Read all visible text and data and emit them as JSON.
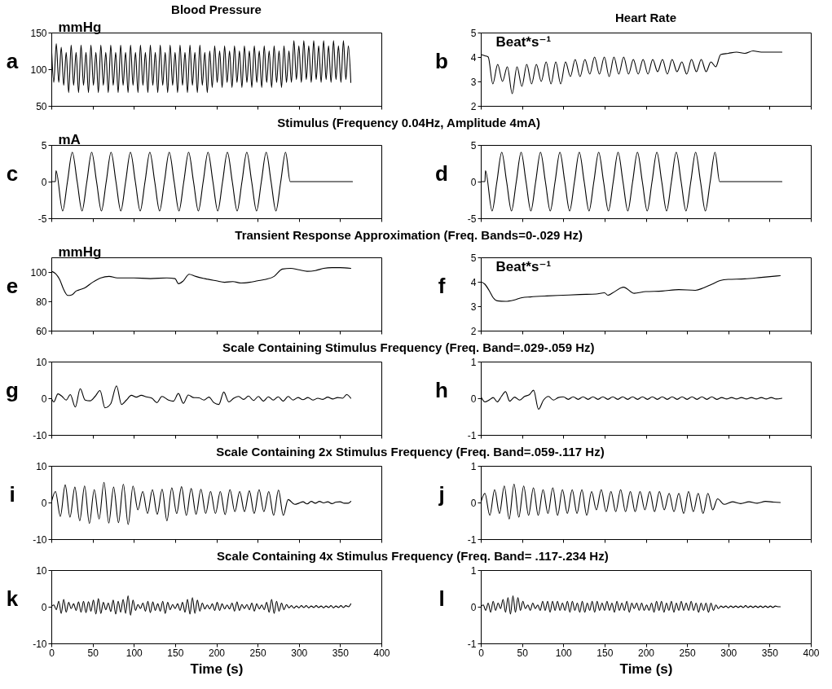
{
  "chart_data": [
    {
      "type": "line",
      "title": "Blood Pressure",
      "ylabel": "mmHg",
      "annotations": [
        "a"
      ],
      "xlim": [
        0,
        400
      ],
      "xticks": [
        0,
        50,
        100,
        150,
        200,
        250,
        300,
        350,
        400
      ],
      "ylim": [
        50,
        150
      ],
      "yticks": [
        50,
        100,
        150
      ],
      "tick_labels": "y",
      "x": [
        0,
        3,
        6,
        9,
        12,
        15,
        18,
        21,
        24,
        27,
        30,
        33,
        36,
        39,
        42,
        45,
        48,
        51,
        54,
        57,
        60,
        63,
        66,
        69,
        72,
        75,
        78,
        81,
        84,
        87,
        90,
        93,
        96,
        99,
        102,
        105,
        108,
        111,
        114,
        117,
        120,
        123,
        126,
        129,
        132,
        135,
        138,
        141,
        144,
        147,
        150,
        153,
        156,
        159,
        162,
        165,
        168,
        171,
        174,
        177,
        180,
        183,
        186,
        189,
        192,
        195,
        198,
        201,
        204,
        207,
        210,
        213,
        216,
        219,
        222,
        225,
        228,
        231,
        234,
        237,
        240,
        243,
        246,
        249,
        252,
        255,
        258,
        261,
        264,
        267,
        270,
        273,
        276,
        279,
        282,
        285,
        288,
        291,
        294,
        297,
        300,
        303,
        306,
        309,
        312,
        315,
        318,
        321,
        324,
        327,
        330,
        333,
        336,
        339,
        342,
        345,
        348,
        351,
        354,
        357,
        360,
        363
      ],
      "series": [
        {
          "color": "#000000",
          "values": [
            135,
            82,
            135,
            82,
            130,
            78,
            123,
            68,
            133,
            78,
            123,
            68,
            133,
            78,
            123,
            68,
            133,
            78,
            123,
            68,
            133,
            78,
            123,
            68,
            133,
            78,
            123,
            68,
            133,
            78,
            123,
            68,
            133,
            78,
            123,
            68,
            133,
            78,
            123,
            68,
            133,
            78,
            123,
            68,
            133,
            78,
            123,
            68,
            133,
            78,
            123,
            68,
            133,
            78,
            123,
            68,
            133,
            78,
            123,
            68,
            133,
            78,
            123,
            68,
            125,
            75,
            132,
            82,
            125,
            75,
            132,
            82,
            125,
            75,
            132,
            82,
            125,
            75,
            132,
            82,
            125,
            75,
            132,
            82,
            125,
            75,
            132,
            82,
            125,
            75,
            132,
            82,
            125,
            75,
            132,
            82,
            125,
            82,
            139,
            86,
            132,
            82,
            139,
            86,
            132,
            82,
            139,
            86,
            132,
            82,
            139,
            86,
            132,
            82,
            139,
            86,
            132,
            82,
            139,
            86,
            132,
            82
          ]
        }
      ]
    },
    {
      "type": "line",
      "title": "Heart Rate",
      "ylabel": "Beat*s⁻¹",
      "annotations": [
        "b"
      ],
      "xlim": [
        0,
        400
      ],
      "xticks": [
        0,
        50,
        100,
        150,
        200,
        250,
        300,
        350,
        400
      ],
      "ylim": [
        2,
        5
      ],
      "yticks": [
        2,
        3,
        4,
        5
      ],
      "tick_labels": "y",
      "x": [
        0,
        5,
        9,
        14.6,
        20.5,
        26.3,
        32.2,
        38.1,
        43.9,
        49.8,
        55.7,
        61.6,
        67.4,
        73.3,
        79.2,
        85.1,
        90.9,
        96.8,
        102.7,
        108.6,
        114.4,
        120.3,
        126.2,
        132.1,
        137.9,
        143.8,
        149.7,
        155.6,
        161.4,
        167.3,
        173.2,
        179.1,
        184.9,
        190.8,
        196.7,
        202.6,
        208.4,
        214.3,
        220.2,
        226.1,
        231.9,
        237.8,
        243.7,
        249.6,
        255.4,
        261.3,
        267.2,
        273.1,
        278.9,
        284.8,
        290.7,
        300,
        310,
        320,
        330,
        340,
        350,
        365
      ],
      "series": [
        {
          "color": "#000000",
          "values": [
            4.1,
            4.05,
            4.0,
            2.9,
            3.7,
            3.0,
            3.6,
            2.5,
            3.6,
            2.8,
            3.7,
            2.9,
            3.7,
            3.0,
            3.8,
            2.9,
            3.8,
            2.9,
            3.8,
            3.2,
            3.9,
            3.2,
            3.9,
            3.3,
            4.0,
            3.3,
            4.0,
            3.2,
            4.0,
            3.3,
            4.0,
            3.3,
            3.9,
            3.3,
            3.9,
            3.3,
            3.9,
            3.4,
            3.9,
            3.3,
            3.9,
            3.4,
            3.8,
            3.3,
            3.9,
            3.4,
            3.9,
            3.4,
            3.8,
            3.6,
            4.1,
            4.15,
            4.2,
            4.15,
            4.25,
            4.2,
            4.2,
            4.2
          ]
        }
      ]
    },
    {
      "type": "line",
      "title": "Stimulus (Frequency 0.04Hz, Amplitude 4mA)",
      "ylabel": "mA",
      "annotations": [
        "c"
      ],
      "xlim": [
        0,
        400
      ],
      "xticks": [
        0,
        50,
        100,
        150,
        200,
        250,
        300,
        350,
        400
      ],
      "ylim": [
        -5,
        5
      ],
      "yticks": [
        -5,
        0,
        5
      ],
      "tick_labels": "y",
      "x": [
        0,
        5,
        5.7,
        13.7,
        19.55,
        25.4,
        31.3,
        37.2,
        43.05,
        48.9,
        54.8,
        60.7,
        66.55,
        72.4,
        78.3,
        84.2,
        90.05,
        95.9,
        101.8,
        107.7,
        113.55,
        119.4,
        125.3,
        131.2,
        137.05,
        142.9,
        148.8,
        154.7,
        160.55,
        166.4,
        172.3,
        178.2,
        184.05,
        189.9,
        195.8,
        201.7,
        207.55,
        213.4,
        219.3,
        225.2,
        231.05,
        236.9,
        242.8,
        248.7,
        254.55,
        260.4,
        266.3,
        272.2,
        278.05,
        283.9,
        289.5,
        365
      ],
      "series": [
        {
          "color": "#000000",
          "values": [
            0,
            0,
            1.5,
            -4,
            0,
            4,
            0,
            -4,
            0,
            4,
            0,
            -4,
            0,
            4,
            0,
            -4,
            0,
            4,
            0,
            -4,
            0,
            4,
            0,
            -4,
            0,
            4,
            0,
            -4,
            0,
            4,
            0,
            -4,
            0,
            4,
            0,
            -4,
            0,
            4,
            0,
            -4,
            0,
            4,
            0,
            -4,
            0,
            4,
            0,
            -4,
            0,
            4,
            0,
            0
          ]
        }
      ]
    },
    {
      "type": "line",
      "annotations": [
        "d"
      ],
      "xlim": [
        0,
        400
      ],
      "xticks": [
        0,
        50,
        100,
        150,
        200,
        250,
        300,
        350,
        400
      ],
      "ylim": [
        -5,
        5
      ],
      "yticks": [
        -5,
        0,
        5
      ],
      "tick_labels": "y",
      "x": [
        0,
        5,
        5.7,
        13.7,
        19.55,
        25.4,
        31.3,
        37.2,
        43.05,
        48.9,
        54.8,
        60.7,
        66.55,
        72.4,
        78.3,
        84.2,
        90.05,
        95.9,
        101.8,
        107.7,
        113.55,
        119.4,
        125.3,
        131.2,
        137.05,
        142.9,
        148.8,
        154.7,
        160.55,
        166.4,
        172.3,
        178.2,
        184.05,
        189.9,
        195.8,
        201.7,
        207.55,
        213.4,
        219.3,
        225.2,
        231.05,
        236.9,
        242.8,
        248.7,
        254.55,
        260.4,
        266.3,
        272.2,
        278.05,
        283.9,
        289.5,
        365
      ],
      "series": [
        {
          "color": "#000000",
          "values": [
            0,
            0,
            1.5,
            -4,
            0,
            4,
            0,
            -4,
            0,
            4,
            0,
            -4,
            0,
            4,
            0,
            -4,
            0,
            4,
            0,
            -4,
            0,
            4,
            0,
            -4,
            0,
            4,
            0,
            -4,
            0,
            4,
            0,
            -4,
            0,
            4,
            0,
            -4,
            0,
            4,
            0,
            -4,
            0,
            4,
            0,
            -4,
            0,
            4,
            0,
            -4,
            0,
            4,
            0,
            0
          ]
        }
      ]
    },
    {
      "type": "line",
      "title": "Transient Response Approximation (Freq. Bands=0-.029 Hz)",
      "ylabel": "mmHg",
      "annotations": [
        "e"
      ],
      "xlim": [
        0,
        400
      ],
      "xticks": [
        0,
        50,
        100,
        150,
        200,
        250,
        300,
        350,
        400
      ],
      "ylim": [
        60,
        110
      ],
      "yticks": [
        60,
        80,
        100
      ],
      "tick_labels": "y",
      "x": [
        0,
        5,
        10,
        15,
        20,
        25,
        30,
        35,
        40,
        50,
        60,
        70,
        80,
        100,
        120,
        140,
        150,
        154,
        160,
        167,
        175,
        186,
        200,
        210,
        220,
        230,
        240,
        250,
        260,
        270,
        280,
        290,
        300,
        310,
        320,
        330,
        340,
        350,
        363
      ],
      "series": [
        {
          "color": "#000000",
          "values": [
            100.5,
            99,
            95,
            88,
            84,
            84.5,
            87,
            88,
            89,
            93,
            96,
            97,
            96,
            96,
            95.5,
            96,
            95.5,
            92,
            94,
            98.5,
            97,
            95.5,
            94,
            93,
            93.5,
            92.5,
            93,
            94,
            95,
            97,
            102,
            102.5,
            101.5,
            100.5,
            101,
            102.5,
            103,
            103,
            102.5
          ]
        }
      ]
    },
    {
      "type": "line",
      "ylabel": "Beat*s⁻¹",
      "annotations": [
        "f"
      ],
      "xlim": [
        0,
        400
      ],
      "xticks": [
        0,
        50,
        100,
        150,
        200,
        250,
        300,
        350,
        400
      ],
      "ylim": [
        2,
        5
      ],
      "yticks": [
        2,
        3,
        4,
        5
      ],
      "tick_labels": "y",
      "x": [
        0,
        5,
        10,
        15,
        20,
        30,
        40,
        50,
        60,
        80,
        100,
        120,
        140,
        150,
        154,
        160,
        173,
        186,
        200,
        220,
        240,
        260,
        270,
        280,
        290,
        300,
        320,
        340,
        363
      ],
      "series": [
        {
          "color": "#000000",
          "values": [
            4.0,
            3.9,
            3.65,
            3.35,
            3.22,
            3.2,
            3.25,
            3.35,
            3.38,
            3.42,
            3.45,
            3.48,
            3.5,
            3.55,
            3.45,
            3.55,
            3.78,
            3.53,
            3.6,
            3.62,
            3.68,
            3.65,
            3.75,
            3.9,
            4.05,
            4.1,
            4.12,
            4.18,
            4.25
          ]
        }
      ]
    },
    {
      "type": "line",
      "title": "Scale Containing Stimulus Frequency (Freq. Band=.029-.059 Hz)",
      "annotations": [
        "g"
      ],
      "xlim": [
        0,
        400
      ],
      "xticks": [
        0,
        50,
        100,
        150,
        200,
        250,
        300,
        350,
        400
      ],
      "ylim": [
        -10,
        10
      ],
      "yticks": [
        -10,
        0,
        10
      ],
      "tick_labels": "y",
      "x": [
        0,
        3,
        8,
        13,
        18,
        23,
        29,
        35,
        41,
        47,
        53,
        59,
        65,
        72,
        79,
        85,
        91,
        97,
        103,
        109,
        115,
        122,
        128,
        134,
        142,
        148,
        154,
        160,
        166,
        172,
        179,
        185,
        191,
        197,
        203,
        209,
        215,
        221,
        227,
        233,
        239,
        245,
        251,
        257,
        263,
        269,
        275,
        281,
        287,
        293,
        299,
        305,
        311,
        317,
        323,
        329,
        335,
        341,
        347,
        353,
        358,
        363
      ],
      "series": [
        {
          "color": "#000000",
          "values": [
            0,
            -1,
            1.2,
            0.5,
            -0.5,
            1,
            -2.4,
            2.6,
            -0.5,
            -0.7,
            0.5,
            2.1,
            -2.6,
            -1.5,
            3.4,
            -1.7,
            -0.5,
            0.8,
            0.3,
            0.8,
            0.4,
            0,
            -1.2,
            0.5,
            -0.5,
            -0.8,
            1.3,
            -1.4,
            0.9,
            0.2,
            0.1,
            -0.5,
            0.3,
            -1.2,
            -1.7,
            1.7,
            -1,
            0,
            0.5,
            -0.3,
            0.6,
            -0.6,
            0.5,
            -0.8,
            0.4,
            -0.5,
            0.4,
            -0.8,
            0.5,
            -0.5,
            0.2,
            -0.4,
            0.2,
            -0.5,
            0,
            -0.3,
            0.3,
            -0.2,
            0.2,
            0,
            1,
            0
          ]
        }
      ]
    },
    {
      "type": "line",
      "annotations": [
        "h"
      ],
      "xlim": [
        0,
        400
      ],
      "xticks": [
        0,
        50,
        100,
        150,
        200,
        250,
        300,
        350,
        400
      ],
      "ylim": [
        -1,
        1
      ],
      "yticks": [
        -1,
        0,
        1
      ],
      "tick_labels": "y",
      "x": [
        0,
        5,
        10,
        15,
        20,
        25,
        30,
        35,
        41,
        47,
        53,
        59,
        64,
        70,
        76,
        82,
        88,
        94,
        100,
        106,
        112,
        118,
        124,
        130,
        136,
        142,
        148,
        154,
        160,
        166,
        172,
        178,
        184,
        190,
        196,
        202,
        208,
        214,
        220,
        226,
        232,
        238,
        244,
        250,
        256,
        262,
        268,
        274,
        280,
        286,
        292,
        298,
        304,
        310,
        316,
        322,
        328,
        334,
        340,
        346,
        352,
        358,
        365
      ],
      "series": [
        {
          "color": "#000000",
          "values": [
            0.05,
            -0.1,
            -0.05,
            0.02,
            -0.1,
            0.05,
            0.18,
            -0.08,
            0.03,
            -0.05,
            0.05,
            0.1,
            0.22,
            -0.3,
            -0.05,
            0.05,
            -0.05,
            0.02,
            0.04,
            -0.03,
            0.04,
            -0.03,
            0.04,
            -0.03,
            0.04,
            -0.03,
            0.04,
            -0.03,
            0.04,
            -0.03,
            0.04,
            -0.03,
            0.04,
            -0.03,
            0.04,
            -0.03,
            0.04,
            -0.03,
            0.04,
            -0.03,
            0.04,
            -0.03,
            0.04,
            -0.03,
            0.04,
            -0.03,
            0.04,
            -0.03,
            0.04,
            -0.03,
            0.02,
            -0.02,
            0.02,
            -0.02,
            0.02,
            -0.02,
            0.02,
            -0.02,
            0.02,
            -0.02,
            0.02,
            -0.02,
            0
          ]
        }
      ]
    },
    {
      "type": "line",
      "title": "Scale Containing 2x Stimulus Frequency (Freq. Band=.059-.117 Hz)",
      "annotations": [
        "i"
      ],
      "xlim": [
        0,
        400
      ],
      "xticks": [
        0,
        50,
        100,
        150,
        200,
        250,
        300,
        350,
        400
      ],
      "ylim": [
        -10,
        10
      ],
      "yticks": [
        -10,
        0,
        10
      ],
      "tick_labels": "y",
      "x": [
        0,
        5,
        10.9,
        16.8,
        22.6,
        28.5,
        34.4,
        40.3,
        46.1,
        52,
        57.9,
        63.8,
        69.6,
        75.5,
        81.4,
        87.3,
        93.1,
        99,
        104.9,
        110.8,
        116.6,
        122.5,
        128.4,
        134.3,
        140.1,
        146,
        151.9,
        157.8,
        163.6,
        169.5,
        175.4,
        181.3,
        187.1,
        193,
        198.9,
        204.8,
        210.6,
        216.5,
        222.4,
        228.3,
        234.1,
        240,
        245.9,
        251.8,
        257.6,
        263.5,
        269.4,
        275.3,
        281.1,
        287,
        295,
        300,
        305,
        310,
        315,
        320,
        325,
        330,
        335,
        340,
        345,
        350,
        355,
        360,
        363
      ],
      "series": [
        {
          "color": "#000000",
          "values": [
            0,
            3,
            -3.8,
            4.8,
            -4,
            4.2,
            -5,
            4.5,
            -5.7,
            3.5,
            -4.5,
            5.5,
            -5.6,
            4.2,
            -5.5,
            5,
            -6,
            4.5,
            -2,
            3,
            -3,
            3.5,
            -3.2,
            3.6,
            -5,
            4,
            -3,
            4.3,
            -3.5,
            3.8,
            -3.2,
            3.6,
            -3,
            3,
            -3,
            3,
            -3.3,
            3.5,
            -2.5,
            3,
            -2.5,
            3.2,
            -3,
            3.5,
            -2.5,
            3,
            -3.5,
            3.4,
            -3.5,
            0.8,
            -0.5,
            -0.2,
            0.2,
            -0.4,
            0.3,
            -0.2,
            0.3,
            -0.1,
            0.2,
            -0.3,
            0.1,
            0.2,
            -0.2,
            -0.2,
            0.3
          ]
        }
      ]
    },
    {
      "type": "line",
      "annotations": [
        "j"
      ],
      "xlim": [
        0,
        400
      ],
      "xticks": [
        0,
        50,
        100,
        150,
        200,
        250,
        300,
        350,
        400
      ],
      "ylim": [
        -1,
        1
      ],
      "yticks": [
        -1,
        0,
        1
      ],
      "tick_labels": "y",
      "x": [
        0,
        5,
        10.9,
        16.8,
        22.6,
        28.5,
        34.4,
        40.3,
        46.1,
        52,
        57.9,
        63.8,
        69.6,
        75.5,
        81.4,
        87.3,
        93.1,
        99,
        104.9,
        110.8,
        116.6,
        122.5,
        128.4,
        134.3,
        140.1,
        146,
        151.9,
        157.8,
        163.6,
        169.5,
        175.4,
        181.3,
        187.1,
        193,
        198.9,
        204.8,
        210.6,
        216.5,
        222.4,
        228.3,
        234.1,
        240,
        245.9,
        251.8,
        257.6,
        263.5,
        269.4,
        275.3,
        281.1,
        287,
        295,
        305,
        315,
        325,
        335,
        345,
        355,
        363
      ],
      "series": [
        {
          "color": "#000000",
          "values": [
            0,
            0.25,
            -0.35,
            0.35,
            -0.3,
            0.45,
            -0.45,
            0.5,
            -0.4,
            0.45,
            -0.35,
            0.4,
            -0.35,
            0.35,
            -0.3,
            0.4,
            -0.35,
            0.35,
            -0.3,
            0.35,
            -0.3,
            0.35,
            -0.35,
            0.3,
            -0.2,
            0.35,
            -0.25,
            0.3,
            -0.25,
            0.35,
            -0.25,
            0.3,
            -0.25,
            0.3,
            -0.2,
            0.3,
            -0.25,
            0.3,
            -0.2,
            0.25,
            -0.25,
            0.25,
            -0.3,
            0.3,
            -0.25,
            0.25,
            -0.3,
            0.25,
            -0.2,
            0.1,
            -0.05,
            0.02,
            -0.03,
            0.02,
            -0.02,
            0.03,
            0.01,
            0
          ]
        }
      ]
    },
    {
      "type": "line",
      "title": "Scale Containing 4x Stimulus Frequency (Freq. Band= .117-.234 Hz)",
      "xlabel": "Time (s)",
      "annotations": [
        "k"
      ],
      "xlim": [
        0,
        400
      ],
      "xticks": [
        0,
        50,
        100,
        150,
        200,
        250,
        300,
        350,
        400
      ],
      "ylim": [
        -10,
        10
      ],
      "yticks": [
        -10,
        0,
        10
      ],
      "x": [
        0,
        3,
        6,
        9,
        12,
        15,
        18,
        21,
        24,
        27,
        30,
        33,
        36,
        39,
        42,
        45,
        48,
        51,
        54,
        57,
        60,
        63,
        66,
        69,
        72,
        75,
        78,
        81,
        84,
        87,
        90,
        93,
        96,
        99,
        102,
        105,
        108,
        111,
        114,
        117,
        120,
        123,
        126,
        129,
        132,
        135,
        138,
        141,
        144,
        147,
        150,
        153,
        156,
        159,
        162,
        165,
        168,
        171,
        174,
        177,
        180,
        183,
        186,
        189,
        192,
        195,
        198,
        201,
        204,
        207,
        210,
        213,
        216,
        219,
        222,
        225,
        228,
        231,
        234,
        237,
        240,
        243,
        246,
        249,
        252,
        255,
        258,
        261,
        264,
        267,
        270,
        273,
        276,
        279,
        282,
        285,
        288,
        291,
        294,
        297,
        300,
        303,
        306,
        309,
        312,
        315,
        318,
        321,
        324,
        327,
        330,
        333,
        336,
        339,
        342,
        345,
        348,
        351,
        354,
        357,
        360,
        363
      ],
      "series": [
        {
          "color": "#000000",
          "values": [
            0,
            0.5,
            -0.8,
            1.5,
            -1.8,
            2,
            -1.5,
            1.2,
            -0.5,
            0.8,
            -1,
            1.3,
            -1.5,
            1.5,
            -1.6,
            1.4,
            -1.2,
            1.8,
            -2,
            2.2,
            -1.8,
            1.2,
            -0.8,
            1,
            -1.3,
            1.8,
            -2,
            1.5,
            -1.5,
            2,
            -1.8,
            3,
            -2.3,
            1.8,
            -1,
            0.6,
            -0.5,
            1,
            -1.2,
            1.5,
            -1.6,
            1.3,
            -1,
            0.8,
            -1.2,
            1.5,
            -1.8,
            1.2,
            -0.8,
            0.6,
            -0.5,
            0.8,
            -1,
            1.2,
            -1.5,
            2,
            -2,
            2.5,
            -1.8,
            1.8,
            -1.2,
            1,
            -0.6,
            0.5,
            -0.6,
            0.8,
            -1,
            1.2,
            -1,
            0.8,
            -0.6,
            0.5,
            -0.6,
            1,
            -1.2,
            1.3,
            -1,
            0.6,
            -0.5,
            0.6,
            -0.8,
            1,
            -1.2,
            0.8,
            -0.6,
            0.5,
            -0.8,
            1.2,
            -1.5,
            2,
            -1.8,
            1.5,
            -1.2,
            1,
            -0.8,
            0.6,
            -0.3,
            0.3,
            -0.4,
            0.2,
            -0.3,
            0.3,
            -0.2,
            0.3,
            -0.3,
            0.2,
            -0.2,
            0.3,
            -0.2,
            0.2,
            -0.3,
            0.2,
            -0.2,
            0.3,
            -0.3,
            0.2,
            -0.2,
            0.3,
            -0.2,
            0.3,
            0,
            0.8
          ]
        }
      ]
    },
    {
      "type": "line",
      "xlabel": "Time (s)",
      "annotations": [
        "l"
      ],
      "xlim": [
        0,
        400
      ],
      "xticks": [
        0,
        50,
        100,
        150,
        200,
        250,
        300,
        350,
        400
      ],
      "ylim": [
        -1,
        1
      ],
      "yticks": [
        -1,
        0,
        1
      ],
      "x": [
        0,
        3,
        6,
        9,
        12,
        15,
        18,
        21,
        24,
        27,
        30,
        33,
        36,
        39,
        42,
        45,
        48,
        51,
        54,
        57,
        60,
        63,
        66,
        69,
        72,
        75,
        78,
        81,
        84,
        87,
        90,
        93,
        96,
        99,
        102,
        105,
        108,
        111,
        114,
        117,
        120,
        123,
        126,
        129,
        132,
        135,
        138,
        141,
        144,
        147,
        150,
        153,
        156,
        159,
        162,
        165,
        168,
        171,
        174,
        177,
        180,
        183,
        186,
        189,
        192,
        195,
        198,
        201,
        204,
        207,
        210,
        213,
        216,
        219,
        222,
        225,
        228,
        231,
        234,
        237,
        240,
        243,
        246,
        249,
        252,
        255,
        258,
        261,
        264,
        267,
        270,
        273,
        276,
        279,
        282,
        285,
        288,
        291,
        294,
        297,
        300,
        303,
        306,
        309,
        312,
        315,
        318,
        321,
        324,
        327,
        330,
        333,
        336,
        339,
        342,
        345,
        348,
        351,
        354,
        357,
        360,
        363
      ],
      "series": [
        {
          "color": "#000000",
          "values": [
            0,
            0.05,
            -0.1,
            0.1,
            -0.15,
            0.15,
            -0.1,
            0.1,
            -0.05,
            0.2,
            -0.15,
            0.25,
            -0.2,
            0.3,
            -0.15,
            0.25,
            -0.1,
            0.15,
            -0.05,
            0.05,
            -0.1,
            0.1,
            -0.05,
            0.05,
            -0.1,
            0.15,
            -0.1,
            0.15,
            -0.15,
            0.15,
            -0.1,
            0.15,
            -0.1,
            0.1,
            -0.1,
            0.15,
            -0.15,
            0.15,
            -0.1,
            0.1,
            -0.15,
            0.15,
            -0.15,
            0.1,
            -0.1,
            0.15,
            -0.15,
            0.15,
            -0.1,
            0.1,
            -0.1,
            0.15,
            -0.1,
            0.1,
            -0.15,
            0.15,
            -0.1,
            0.1,
            -0.1,
            0.15,
            -0.15,
            0.1,
            -0.05,
            0.1,
            -0.1,
            0.1,
            -0.1,
            0.05,
            -0.1,
            0.1,
            -0.15,
            0.15,
            -0.1,
            0.15,
            -0.15,
            0.1,
            -0.1,
            0.15,
            -0.15,
            0.1,
            -0.1,
            0.15,
            -0.1,
            0.1,
            -0.1,
            0.15,
            -0.1,
            0.1,
            -0.15,
            0.1,
            -0.1,
            0.1,
            -0.15,
            0.1,
            -0.1,
            0.05,
            -0.05,
            0.02,
            -0.02,
            0.02,
            -0.03,
            0.02,
            -0.02,
            0.02,
            -0.02,
            0.02,
            -0.02,
            0.03,
            -0.02,
            0.02,
            -0.02,
            0.02,
            -0.02,
            0.02,
            -0.02,
            0.02,
            -0.02,
            0.02,
            -0.02,
            0.02,
            0,
            0
          ]
        }
      ]
    }
  ]
}
